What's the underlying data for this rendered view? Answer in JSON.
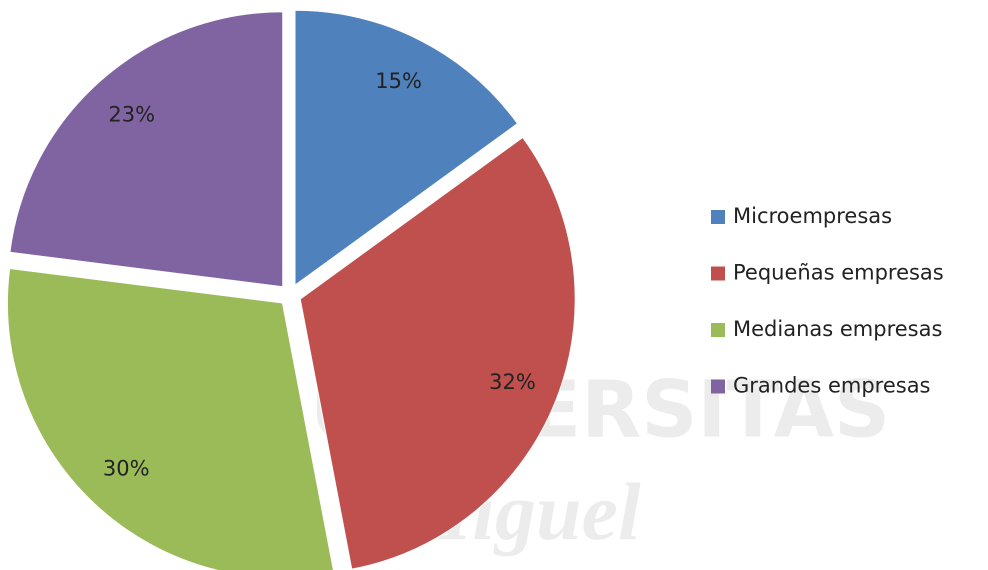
{
  "chart_data": {
    "type": "pie",
    "categories": [
      "Microempresas",
      "Pequeñas empresas",
      "Medianas empresas",
      "Grandes empresas"
    ],
    "values": [
      15,
      32,
      30,
      23
    ],
    "value_labels": [
      "15%",
      "32%",
      "30%",
      "23%"
    ],
    "colors": [
      "#4f81bd",
      "#c0504d",
      "#9bbb59",
      "#8064a2"
    ],
    "legend": "right"
  },
  "watermark": {
    "lines": [
      "UNIVERSITAS",
      "Miguel"
    ]
  }
}
